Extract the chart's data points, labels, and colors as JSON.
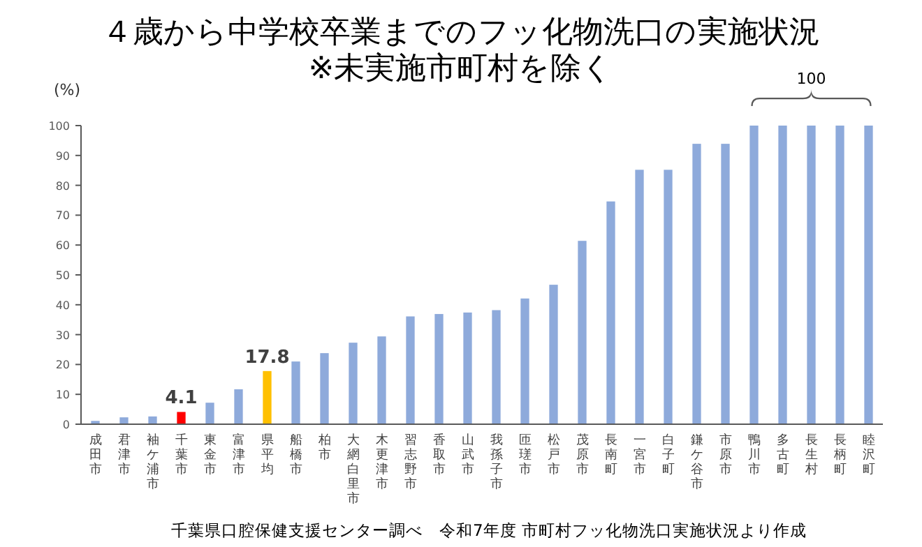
{
  "chart_data": {
    "type": "bar",
    "title": "４歳から中学校卒業までのフッ化物洗口の実施状況",
    "subtitle": "※未実施市町村を除く",
    "ylabel": "(%)",
    "categories": [
      "成田市",
      "君津市",
      "袖ケ浦市",
      "千葉市",
      "東金市",
      "富津市",
      "県平均",
      "船橋市",
      "柏市",
      "大網白里市",
      "木更津市",
      "習志野市",
      "香取市",
      "山武市",
      "我孫子市",
      "匝瑳市",
      "松戸市",
      "茂原市",
      "長南町",
      "一宮市",
      "白子町",
      "鎌ケ谷市",
      "市原市",
      "鴨川市",
      "多古町",
      "長生村",
      "長柄町",
      "睦沢町"
    ],
    "values": [
      1.1,
      2.3,
      2.6,
      4.1,
      7.2,
      11.7,
      17.8,
      21.0,
      23.8,
      27.3,
      29.4,
      36.1,
      36.9,
      37.4,
      38.2,
      42.1,
      46.7,
      61.4,
      74.6,
      85.2,
      85.2,
      93.9,
      93.9,
      100,
      100,
      100,
      100,
      100
    ],
    "colors": [
      "#8eaadb",
      "#8eaadb",
      "#8eaadb",
      "#ff0000",
      "#8eaadb",
      "#8eaadb",
      "#ffc000",
      "#8eaadb",
      "#8eaadb",
      "#8eaadb",
      "#8eaadb",
      "#8eaadb",
      "#8eaadb",
      "#8eaadb",
      "#8eaadb",
      "#8eaadb",
      "#8eaadb",
      "#8eaadb",
      "#8eaadb",
      "#8eaadb",
      "#8eaadb",
      "#8eaadb",
      "#8eaadb",
      "#8eaadb",
      "#8eaadb",
      "#8eaadb",
      "#8eaadb",
      "#8eaadb"
    ],
    "value_labels": [
      null,
      null,
      null,
      "4.1",
      null,
      null,
      "17.8",
      null,
      null,
      null,
      null,
      null,
      null,
      null,
      null,
      null,
      null,
      null,
      null,
      null,
      null,
      null,
      null,
      null,
      null,
      null,
      null,
      null
    ],
    "ylim": [
      0,
      100
    ],
    "yticks": [
      0,
      10,
      20,
      30,
      40,
      50,
      60,
      70,
      80,
      90,
      100
    ],
    "grid": false,
    "annotations": [
      {
        "text": "100",
        "x": "長生村",
        "y": 100
      },
      "千葉県口腔保健支援センター調べ　令和7年度 市町村フッ化物洗口実施状況より作成"
    ]
  }
}
